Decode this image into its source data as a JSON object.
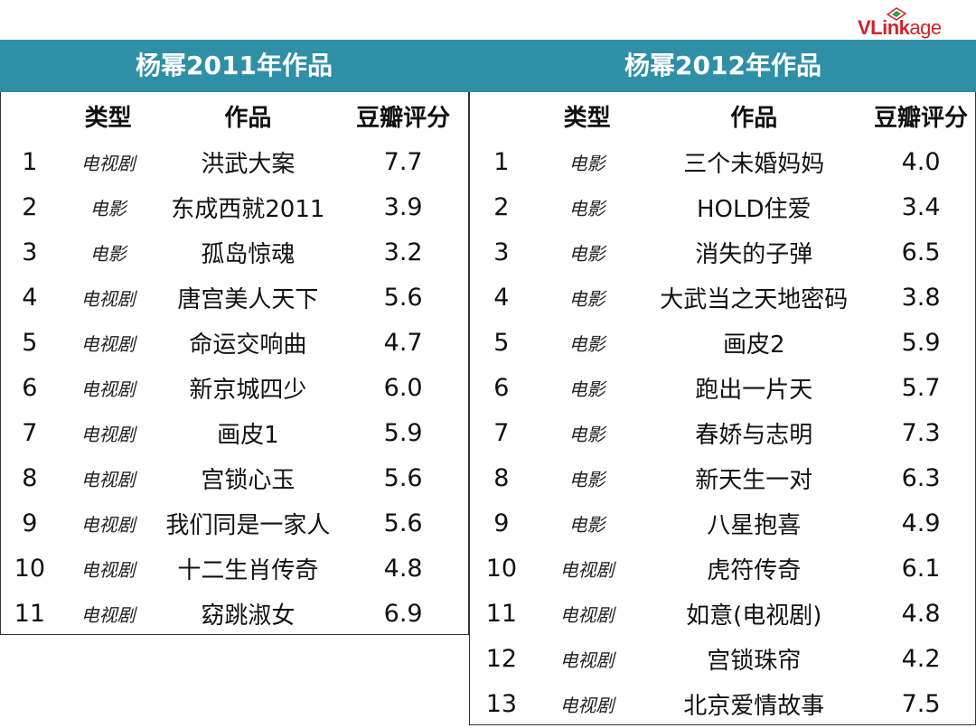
{
  "logo": {
    "text_part1": "VLink",
    "text_part2": "age"
  },
  "left_panel": {
    "title": "杨幂2011年作品",
    "headers": {
      "type": "类型",
      "work": "作品",
      "score": "豆瓣评分"
    },
    "rows": [
      {
        "no": "1",
        "type": "电视剧",
        "work": "洪武大案",
        "score": "7.7"
      },
      {
        "no": "2",
        "type": "电影",
        "work": "东成西就2011",
        "score": "3.9"
      },
      {
        "no": "3",
        "type": "电影",
        "work": "孤岛惊魂",
        "score": "3.2"
      },
      {
        "no": "4",
        "type": "电视剧",
        "work": "唐宫美人天下",
        "score": "5.6"
      },
      {
        "no": "5",
        "type": "电视剧",
        "work": "命运交响曲",
        "score": "4.7"
      },
      {
        "no": "6",
        "type": "电视剧",
        "work": "新京城四少",
        "score": "6.0"
      },
      {
        "no": "7",
        "type": "电视剧",
        "work": "画皮1",
        "score": "5.9"
      },
      {
        "no": "8",
        "type": "电视剧",
        "work": "宫锁心玉",
        "score": "5.6"
      },
      {
        "no": "9",
        "type": "电视剧",
        "work": "我们同是一家人",
        "score": "5.6"
      },
      {
        "no": "10",
        "type": "电视剧",
        "work": "十二生肖传奇",
        "score": "4.8"
      },
      {
        "no": "11",
        "type": "电视剧",
        "work": "窈跳淑女",
        "score": "6.9"
      }
    ]
  },
  "right_panel": {
    "title": "杨幂2012年作品",
    "headers": {
      "type": "类型",
      "work": "作品",
      "score": "豆瓣评分"
    },
    "rows": [
      {
        "no": "1",
        "type": "电影",
        "work": "三个未婚妈妈",
        "score": "4.0"
      },
      {
        "no": "2",
        "type": "电影",
        "work": "HOLD住爱",
        "score": "3.4"
      },
      {
        "no": "3",
        "type": "电影",
        "work": "消失的子弹",
        "score": "6.5"
      },
      {
        "no": "4",
        "type": "电影",
        "work": "大武当之天地密码",
        "score": "3.8"
      },
      {
        "no": "5",
        "type": "电影",
        "work": "画皮2",
        "score": "5.9"
      },
      {
        "no": "6",
        "type": "电影",
        "work": "跑出一片天",
        "score": "5.7"
      },
      {
        "no": "7",
        "type": "电影",
        "work": "春娇与志明",
        "score": "7.3"
      },
      {
        "no": "8",
        "type": "电影",
        "work": "新天生一对",
        "score": "6.3"
      },
      {
        "no": "9",
        "type": "电影",
        "work": "八星抱喜",
        "score": "4.9"
      },
      {
        "no": "10",
        "type": "电视剧",
        "work": "虎符传奇",
        "score": "6.1"
      },
      {
        "no": "11",
        "type": "电视剧",
        "work": "如意(电视剧)",
        "score": "4.8"
      },
      {
        "no": "12",
        "type": "电视剧",
        "work": "宫锁珠帘",
        "score": "4.2"
      },
      {
        "no": "13",
        "type": "电视剧",
        "work": "北京爱情故事",
        "score": "7.5"
      }
    ]
  },
  "colors": {
    "header_bar": "#2e8fa6",
    "logo_red": "#d1232a"
  }
}
